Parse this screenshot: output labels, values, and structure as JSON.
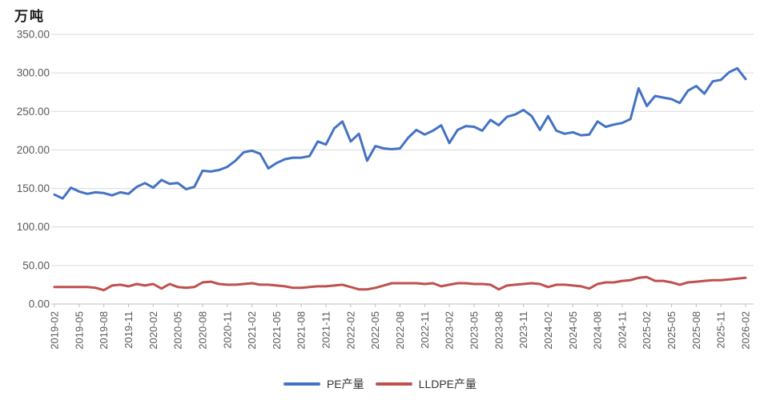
{
  "chart_data": {
    "type": "line",
    "title": "万吨",
    "ylabel": "万吨",
    "ylim": [
      0,
      350
    ],
    "ytick_step": 50,
    "y_tick_labels": [
      "0.00",
      "50.00",
      "100.00",
      "150.00",
      "200.00",
      "250.00",
      "300.00",
      "350.00"
    ],
    "grid": true,
    "legend_position": "bottom-center",
    "xtick_every": 3,
    "x": [
      "2019-02",
      "2019-03",
      "2019-04",
      "2019-05",
      "2019-06",
      "2019-07",
      "2019-08",
      "2019-09",
      "2019-10",
      "2019-11",
      "2019-12",
      "2020-01",
      "2020-02",
      "2020-03",
      "2020-04",
      "2020-05",
      "2020-06",
      "2020-07",
      "2020-08",
      "2020-09",
      "2020-10",
      "2020-11",
      "2020-12",
      "2021-01",
      "2021-02",
      "2021-03",
      "2021-04",
      "2021-05",
      "2021-06",
      "2021-07",
      "2021-08",
      "2021-09",
      "2021-10",
      "2021-11",
      "2021-12",
      "2022-01",
      "2022-02",
      "2022-03",
      "2022-04",
      "2022-05",
      "2022-06",
      "2022-07",
      "2022-08",
      "2022-09",
      "2022-10",
      "2022-11",
      "2022-12",
      "2023-01",
      "2023-02",
      "2023-03",
      "2023-04",
      "2023-05",
      "2023-06",
      "2023-07",
      "2023-08",
      "2023-09",
      "2023-10",
      "2023-11",
      "2023-12",
      "2024-01",
      "2024-02",
      "2024-03",
      "2024-04",
      "2024-05",
      "2024-06",
      "2024-07",
      "2024-08",
      "2024-09",
      "2024-10",
      "2024-11",
      "2024-12",
      "2025-01",
      "2025-02",
      "2025-03",
      "2025-04",
      "2025-05",
      "2025-06",
      "2025-07",
      "2025-08",
      "2025-09",
      "2025-10",
      "2025-11",
      "2025-12",
      "2026-01",
      "2026-02"
    ],
    "series": [
      {
        "name": "PE产量",
        "color": "#4472C4",
        "values": [
          142,
          137,
          151,
          146,
          143,
          145,
          144,
          141,
          145,
          143,
          152,
          157,
          151,
          161,
          156,
          157,
          149,
          152,
          173,
          172,
          174,
          178,
          186,
          197,
          199,
          195,
          176,
          183,
          188,
          190,
          190,
          192,
          211,
          207,
          228,
          237,
          211,
          221,
          186,
          205,
          202,
          201,
          202,
          216,
          226,
          220,
          225,
          232,
          209,
          226,
          231,
          230,
          225,
          239,
          232,
          243,
          246,
          252,
          244,
          226,
          244,
          225,
          221,
          223,
          219,
          220,
          237,
          230,
          233,
          235,
          240,
          280,
          257,
          270,
          268,
          266,
          261,
          277,
          283,
          273,
          289,
          291,
          301,
          306,
          292
        ]
      },
      {
        "name": "LLDPE产量",
        "color": "#C0504D",
        "values": [
          22,
          22,
          22,
          22,
          22,
          21,
          18,
          24,
          25,
          23,
          26,
          24,
          26,
          20,
          26,
          22,
          21,
          22,
          28,
          29,
          26,
          25,
          25,
          26,
          27,
          25,
          25,
          24,
          23,
          21,
          21,
          22,
          23,
          23,
          24,
          25,
          22,
          19,
          19,
          21,
          24,
          27,
          27,
          27,
          27,
          26,
          27,
          23,
          25,
          27,
          27,
          26,
          26,
          25,
          19,
          24,
          25,
          26,
          27,
          26,
          22,
          25,
          25,
          24,
          23,
          20,
          26,
          28,
          28,
          30,
          31,
          34,
          35,
          30,
          30,
          28,
          25,
          28,
          29,
          30,
          31,
          31,
          32,
          33,
          34
        ]
      }
    ],
    "colors": {
      "grid": "#D9D9D9",
      "axis": "#BFBFBF",
      "tick_text": "#595959",
      "title_text": "#1a1a1a",
      "legend_text": "#333333",
      "background": "#FFFFFF"
    }
  }
}
